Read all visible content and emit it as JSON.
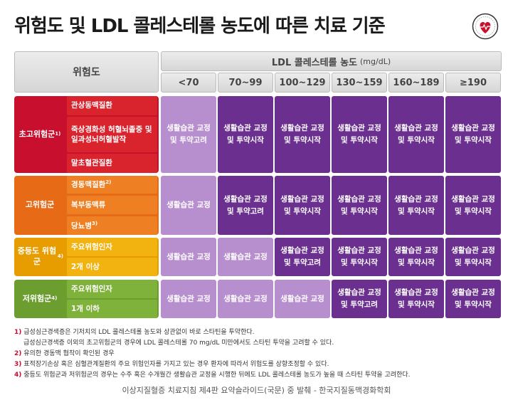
{
  "title": "위험도 및 LDL 콜레스테롤 농도에 따른 치료 기준",
  "header": {
    "risk_label": "위험도",
    "ldl_label": "LDL 콜레스테롤 농도",
    "ldl_unit": "(mg/dL)",
    "columns": [
      "<70",
      "70~99",
      "100~129",
      "130~159",
      "160~189",
      "≥190"
    ]
  },
  "groups": [
    {
      "label": "초고위험군",
      "sup": "1)",
      "subs": [
        {
          "text": "관상동맥질환",
          "sup": ""
        },
        {
          "text": "죽상경화성 허혈뇌졸중 및 일과성뇌허혈발작",
          "sup": ""
        },
        {
          "text": "말초혈관질환",
          "sup": ""
        }
      ],
      "cells": [
        {
          "text": "생활습관 교정 및 투약고려",
          "shade": "light"
        },
        {
          "text": "생활습관 교정 및 투약시작",
          "shade": "dark"
        },
        {
          "text": "생활습관 교정 및 투약시작",
          "shade": "dark"
        },
        {
          "text": "생활습관 교정 및 투약시작",
          "shade": "dark"
        },
        {
          "text": "생활습관 교정 및 투약시작",
          "shade": "dark"
        },
        {
          "text": "생활습관 교정 및 투약시작",
          "shade": "dark"
        }
      ]
    },
    {
      "label": "고위험군",
      "sup": "",
      "subs": [
        {
          "text": "경동맥질환",
          "sup": "2)"
        },
        {
          "text": "복부동맥류",
          "sup": ""
        },
        {
          "text": "당뇨병",
          "sup": "3)"
        }
      ],
      "cells": [
        {
          "text": "생활습관 교정",
          "shade": "light"
        },
        {
          "text": "생활습관 교정 및 투약고려",
          "shade": "dark"
        },
        {
          "text": "생활습관 교정 및 투약시작",
          "shade": "dark"
        },
        {
          "text": "생활습관 교정 및 투약시작",
          "shade": "dark"
        },
        {
          "text": "생활습관 교정 및 투약시작",
          "shade": "dark"
        },
        {
          "text": "생활습관 교정 및 투약시작",
          "shade": "dark"
        }
      ]
    },
    {
      "label": "중등도 위험군",
      "sup": "4)",
      "subs": [
        {
          "text": "주요위험인자",
          "sup": ""
        },
        {
          "text": "2개 이상",
          "sup": ""
        }
      ],
      "cells": [
        {
          "text": "생활습관 교정",
          "shade": "light"
        },
        {
          "text": "생활습관 교정",
          "shade": "light"
        },
        {
          "text": "생활습관 교정 및 투약고려",
          "shade": "dark"
        },
        {
          "text": "생활습관 교정 및 투약시작",
          "shade": "dark"
        },
        {
          "text": "생활습관 교정 및 투약시작",
          "shade": "dark"
        },
        {
          "text": "생활습관 교정 및 투약시작",
          "shade": "dark"
        }
      ]
    },
    {
      "label": "저위험군",
      "sup": "4)",
      "subs": [
        {
          "text": "주요위험인자",
          "sup": ""
        },
        {
          "text": "1개 이하",
          "sup": ""
        }
      ],
      "cells": [
        {
          "text": "생활습관 교정",
          "shade": "light"
        },
        {
          "text": "생활습관 교정",
          "shade": "light"
        },
        {
          "text": "생활습관 교정",
          "shade": "light"
        },
        {
          "text": "생활습관 교정 및 투약고려",
          "shade": "dark"
        },
        {
          "text": "생활습관 교정 및 투약시작",
          "shade": "dark"
        },
        {
          "text": "생활습관 교정 및 투약시작",
          "shade": "dark"
        }
      ]
    }
  ],
  "notes": [
    {
      "num": "1)",
      "text": "급성심근경색증은 기저치의 LDL 콜레스테롤 농도와 상관없이 바로 스타틴을 투약한다."
    },
    {
      "num": "",
      "text": "급성심근경색증 이외의 초고위험군의 경우에 LDL 콜레스테롤 70 mg/dL 미만에서도 스타틴 투약을 고려할 수 있다."
    },
    {
      "num": "2)",
      "text": "유의한 경동맥 협착이 확인된 경우"
    },
    {
      "num": "3)",
      "text": "표적장기손상 혹은 심혈관계질환의 주요 위험인자를 가지고 있는 경우 환자에 따라서 위험도를 상향조정할 수 있다."
    },
    {
      "num": "4)",
      "text": "중등도 위험군과 저위험군의 경우는 수주 혹은 수개월간 생활습관 교정을 시행한 뒤에도 LDL 콜레스테롤 농도가 높을 때 스타틴 투약을 고려한다."
    }
  ],
  "source": "이상지질혈증 치료지침 제4판 요약슬라이드(국문) 중 발췌 - 한국지질동맥경화학회",
  "colors": {
    "high": "#c8102e",
    "moderate_high": "#e76a17",
    "moderate": "#e79d00",
    "low": "#6b9e2f",
    "cell_light": "#b78fce",
    "cell_dark": "#6a2f8f"
  }
}
